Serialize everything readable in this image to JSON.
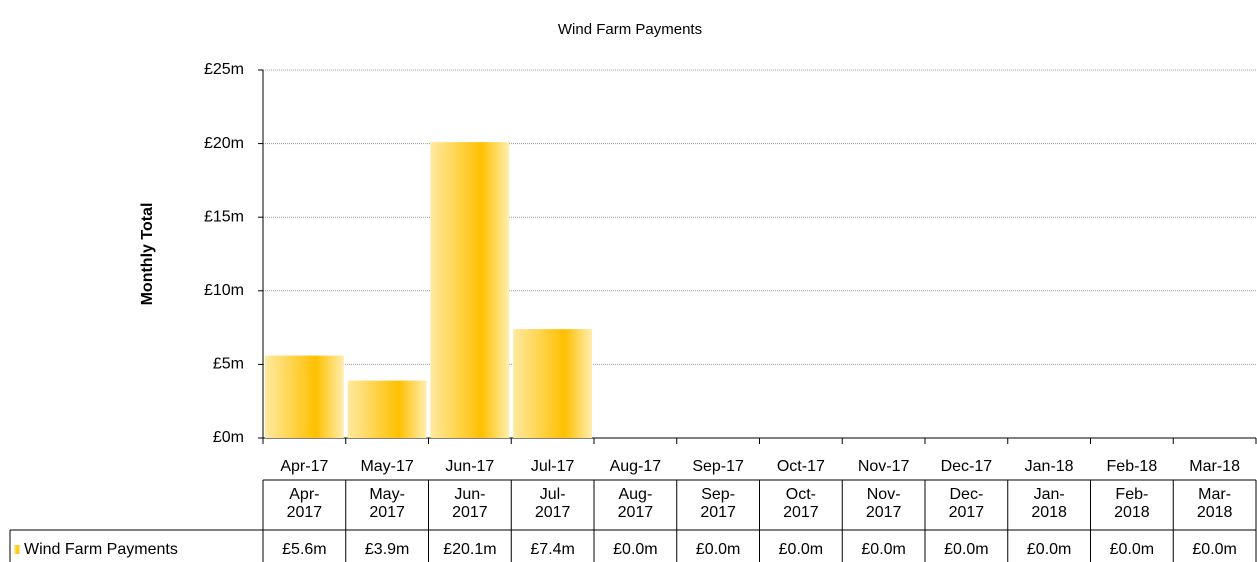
{
  "chart_data": {
    "type": "bar",
    "title": "Wind Farm Payments",
    "y_label": "Monthly Total",
    "categories": [
      "Apr-17",
      "May-17",
      "Jun-17",
      "Jul-17",
      "Aug-17",
      "Sep-17",
      "Oct-17",
      "Nov-17",
      "Dec-17",
      "Jan-18",
      "Feb-18",
      "Mar-18"
    ],
    "table_headers": [
      "Apr-\n2017",
      "May-\n2017",
      "Jun-\n2017",
      "Jul-\n2017",
      "Aug-\n2017",
      "Sep-\n2017",
      "Oct-\n2017",
      "Nov-\n2017",
      "Dec-\n2017",
      "Jan-\n2018",
      "Feb-\n2018",
      "Mar-\n2018"
    ],
    "series": [
      {
        "name": "Wind Farm Payments",
        "color": "#ffc000",
        "values": [
          5.6,
          3.9,
          20.1,
          7.4,
          0,
          0,
          0,
          0,
          0,
          0,
          0,
          0
        ],
        "value_labels": [
          "£5.6m",
          "£3.9m",
          "£20.1m",
          "£7.4m",
          "£0.0m",
          "£0.0m",
          "£0.0m",
          "£0.0m",
          "£0.0m",
          "£0.0m",
          "£0.0m",
          "£0.0m"
        ]
      }
    ],
    "ylim": [
      0,
      25
    ],
    "yticks": [
      {
        "value": 0,
        "label": "£0m"
      },
      {
        "value": 5,
        "label": "£5m"
      },
      {
        "value": 10,
        "label": "£10m"
      },
      {
        "value": 15,
        "label": "£15m"
      },
      {
        "value": 20,
        "label": "£20m"
      },
      {
        "value": 25,
        "label": "£25m"
      }
    ],
    "grid": true
  }
}
